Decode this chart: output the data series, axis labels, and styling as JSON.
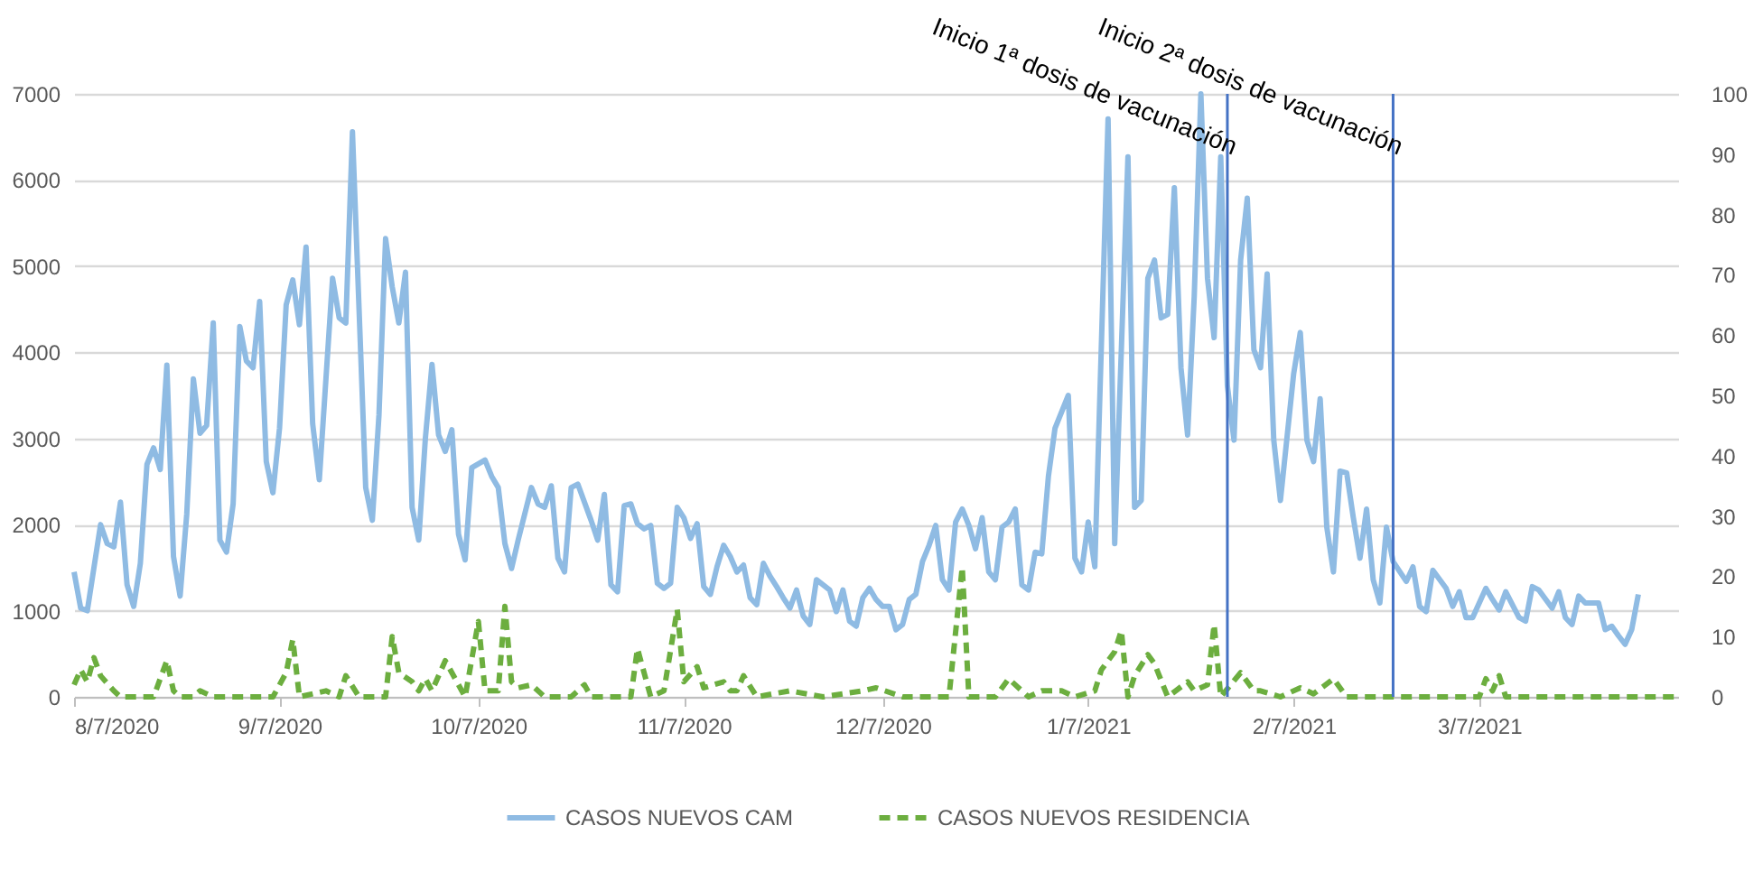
{
  "chart_data": {
    "type": "line",
    "xlim": [
      "2020-08-07",
      "2021-04-06"
    ],
    "xticks": [
      {
        "value": "2020-08-07",
        "label": "8/7/2020"
      },
      {
        "value": "2020-09-07",
        "label": "9/7/2020"
      },
      {
        "value": "2020-10-07",
        "label": "10/7/2020"
      },
      {
        "value": "2020-11-07",
        "label": "11/7/2020"
      },
      {
        "value": "2020-12-07",
        "label": "12/7/2020"
      },
      {
        "value": "2021-01-07",
        "label": "1/7/2021"
      },
      {
        "value": "2021-02-07",
        "label": "2/7/2021"
      },
      {
        "value": "2021-03-07",
        "label": "3/7/2021"
      }
    ],
    "ylim": [
      0,
      7000
    ],
    "yticks": [
      0,
      1000,
      2000,
      3000,
      4000,
      5000,
      6000,
      7000
    ],
    "y2lim": [
      0,
      100
    ],
    "y2ticks": [
      0,
      10,
      20,
      30,
      40,
      50,
      60,
      70,
      80,
      90,
      100
    ],
    "grid": "y",
    "legend": "bottom",
    "series": [
      {
        "name": "CASOS NUEVOS CAM",
        "type": "line",
        "color": "#8fbbe3",
        "line_style": "solid",
        "x": [
          "2020-08-07",
          "2020-08-08",
          "2020-08-09",
          "2020-08-10",
          "2020-08-11",
          "2020-08-12",
          "2020-08-13",
          "2020-08-14",
          "2020-08-15",
          "2020-08-16",
          "2020-08-17",
          "2020-08-18",
          "2020-08-19",
          "2020-08-20",
          "2020-08-21",
          "2020-08-22",
          "2020-08-23",
          "2020-08-24",
          "2020-08-25",
          "2020-08-26",
          "2020-08-27",
          "2020-08-28",
          "2020-08-29",
          "2020-08-30",
          "2020-08-31",
          "2020-09-01",
          "2020-09-02",
          "2020-09-03",
          "2020-09-04",
          "2020-09-05",
          "2020-09-06",
          "2020-09-07",
          "2020-09-08",
          "2020-09-09",
          "2020-09-10",
          "2020-09-11",
          "2020-09-12",
          "2020-09-13",
          "2020-09-14",
          "2020-09-15",
          "2020-09-16",
          "2020-09-17",
          "2020-09-18",
          "2020-09-20",
          "2020-09-21",
          "2020-09-22",
          "2020-09-23",
          "2020-09-24",
          "2020-09-25",
          "2020-09-26",
          "2020-09-27",
          "2020-09-28",
          "2020-09-29",
          "2020-09-30",
          "2020-10-01",
          "2020-10-02",
          "2020-10-03",
          "2020-10-04",
          "2020-10-05",
          "2020-10-06",
          "2020-10-08",
          "2020-10-09",
          "2020-10-10",
          "2020-10-11",
          "2020-10-12",
          "2020-10-13",
          "2020-10-15",
          "2020-10-16",
          "2020-10-17",
          "2020-10-18",
          "2020-10-19",
          "2020-10-20",
          "2020-10-21",
          "2020-10-22",
          "2020-10-24",
          "2020-10-25",
          "2020-10-26",
          "2020-10-27",
          "2020-10-28",
          "2020-10-29",
          "2020-10-30",
          "2020-10-31",
          "2020-11-01",
          "2020-11-02",
          "2020-11-03",
          "2020-11-04",
          "2020-11-05",
          "2020-11-06",
          "2020-11-07",
          "2020-11-08",
          "2020-11-09",
          "2020-11-10",
          "2020-11-11",
          "2020-11-12",
          "2020-11-13",
          "2020-11-14",
          "2020-11-15",
          "2020-11-16",
          "2020-11-17",
          "2020-11-18",
          "2020-11-19",
          "2020-11-20",
          "2020-11-21",
          "2020-11-22",
          "2020-11-23",
          "2020-11-24",
          "2020-11-25",
          "2020-11-26",
          "2020-11-27",
          "2020-11-29",
          "2020-11-30",
          "2020-12-01",
          "2020-12-02",
          "2020-12-03",
          "2020-12-04",
          "2020-12-05",
          "2020-12-06",
          "2020-12-07",
          "2020-12-08",
          "2020-12-09",
          "2020-12-10",
          "2020-12-11",
          "2020-12-12",
          "2020-12-13",
          "2020-12-14",
          "2020-12-15",
          "2020-12-16",
          "2020-12-17",
          "2020-12-18",
          "2020-12-19",
          "2020-12-20",
          "2020-12-21",
          "2020-12-22",
          "2020-12-23",
          "2020-12-24",
          "2020-12-25",
          "2020-12-26",
          "2020-12-27",
          "2020-12-28",
          "2020-12-29",
          "2020-12-30",
          "2020-12-31",
          "2021-01-01",
          "2021-01-02",
          "2021-01-04",
          "2021-01-05",
          "2021-01-06",
          "2021-01-07",
          "2021-01-08",
          "2021-01-10",
          "2021-01-11",
          "2021-01-13",
          "2021-01-14",
          "2021-01-15",
          "2021-01-16",
          "2021-01-17",
          "2021-01-18",
          "2021-01-19",
          "2021-01-20",
          "2021-01-21",
          "2021-01-22",
          "2021-01-23",
          "2021-01-24",
          "2021-01-25",
          "2021-01-26",
          "2021-01-27",
          "2021-01-28",
          "2021-01-29",
          "2021-01-30",
          "2021-01-31",
          "2021-02-01",
          "2021-02-02",
          "2021-02-03",
          "2021-02-04",
          "2021-02-05",
          "2021-02-07",
          "2021-02-08",
          "2021-02-09",
          "2021-02-10",
          "2021-02-11",
          "2021-02-12",
          "2021-02-13",
          "2021-02-14",
          "2021-02-15",
          "2021-02-16",
          "2021-02-17",
          "2021-02-18",
          "2021-02-19",
          "2021-02-20",
          "2021-02-21",
          "2021-02-22",
          "2021-02-24",
          "2021-02-25",
          "2021-02-26",
          "2021-02-27",
          "2021-02-28",
          "2021-03-02",
          "2021-03-03",
          "2021-03-04",
          "2021-03-05",
          "2021-03-06",
          "2021-03-08",
          "2021-03-09",
          "2021-03-10",
          "2021-03-11",
          "2021-03-13",
          "2021-03-14",
          "2021-03-15",
          "2021-03-16",
          "2021-03-18",
          "2021-03-19",
          "2021-03-20",
          "2021-03-21",
          "2021-03-22",
          "2021-03-23",
          "2021-03-25",
          "2021-03-26",
          "2021-03-27",
          "2021-03-28",
          "2021-03-29",
          "2021-03-30",
          "2021-03-31"
        ],
        "values": [
          1450,
          1030,
          1000,
          1500,
          2000,
          1780,
          1740,
          2260,
          1300,
          1050,
          1550,
          2700,
          2890,
          2640,
          3850,
          1630,
          1170,
          2120,
          3690,
          3060,
          3150,
          4340,
          1820,
          1680,
          2240,
          4300,
          3900,
          3820,
          4590,
          2730,
          2370,
          3120,
          4550,
          4840,
          4320,
          5220,
          3170,
          2520,
          3690,
          4860,
          4400,
          4340,
          6560,
          2430,
          2050,
          3270,
          5320,
          4760,
          4340,
          4930,
          2200,
          1820,
          3000,
          3860,
          3040,
          2850,
          3100,
          1890,
          1590,
          2660,
          2750,
          2560,
          2430,
          1780,
          1490,
          1820,
          2430,
          2240,
          2200,
          2450,
          1610,
          1450,
          2430,
          2470,
          2050,
          1820,
          2350,
          1300,
          1220,
          2220,
          2240,
          2010,
          1950,
          1990,
          1320,
          1260,
          1320,
          2200,
          2080,
          1840,
          2010,
          1280,
          1190,
          1510,
          1760,
          1630,
          1450,
          1530,
          1150,
          1070,
          1550,
          1400,
          1280,
          1150,
          1030,
          1240,
          940,
          840,
          1360,
          1240,
          990,
          1240,
          880,
          820,
          1150,
          1260,
          1130,
          1050,
          1050,
          780,
          840,
          1130,
          1190,
          1570,
          1760,
          1990,
          1360,
          1240,
          2030,
          2180,
          1990,
          1720,
          2080,
          1450,
          1360,
          1970,
          2030,
          2180,
          1300,
          1240,
          1680,
          1660,
          2560,
          3120,
          3500,
          1610,
          1450,
          2030,
          1510,
          6710,
          1780,
          6270,
          2200,
          2280,
          4860,
          5070,
          4400,
          4440,
          5910,
          3820,
          3040,
          4650,
          7000,
          4860,
          4170,
          6270,
          3610,
          2980,
          5070,
          5790,
          4030,
          3820,
          4910,
          2980,
          2280,
          3750,
          4230,
          2980,
          2730,
          3460,
          1970,
          1450,
          2620,
          2600,
          2080,
          1610,
          2180,
          1360,
          1090,
          1970,
          1570,
          1340,
          1510,
          1050,
          990,
          1470,
          1260,
          1050,
          1220,
          920,
          920,
          1260,
          1130,
          1010,
          1220,
          920,
          880,
          1280,
          1240,
          1030,
          1220,
          920,
          840,
          1170,
          1090,
          1090,
          780,
          820,
          710,
          610,
          780,
          1190
        ]
      },
      {
        "name": "CASOS NUEVOS RESIDENCIA",
        "type": "line",
        "axis": "y2",
        "color": "#6cae3f",
        "line_style": "dashed",
        "x": [
          "2020-08-07",
          "2020-08-08",
          "2020-08-09",
          "2020-08-10",
          "2020-08-11",
          "2020-08-13",
          "2020-08-14",
          "2020-08-19",
          "2020-08-21",
          "2020-08-22",
          "2020-08-23",
          "2020-08-25",
          "2020-08-26",
          "2020-08-28",
          "2020-09-06",
          "2020-09-08",
          "2020-09-09",
          "2020-09-10",
          "2020-09-14",
          "2020-09-16",
          "2020-09-17",
          "2020-09-19",
          "2020-09-23",
          "2020-09-24",
          "2020-09-25",
          "2020-09-27",
          "2020-09-28",
          "2020-09-29",
          "2020-09-30",
          "2020-10-02",
          "2020-10-05",
          "2020-10-07",
          "2020-10-08",
          "2020-10-10",
          "2020-10-11",
          "2020-10-12",
          "2020-10-13",
          "2020-10-15",
          "2020-10-17",
          "2020-10-21",
          "2020-10-23",
          "2020-10-24",
          "2020-10-30",
          "2020-10-31",
          "2020-11-02",
          "2020-11-04",
          "2020-11-06",
          "2020-11-07",
          "2020-11-09",
          "2020-11-10",
          "2020-11-13",
          "2020-11-14",
          "2020-11-15",
          "2020-11-16",
          "2020-11-18",
          "2020-11-23",
          "2020-11-28",
          "2020-12-04",
          "2020-12-06",
          "2020-12-10",
          "2020-12-17",
          "2020-12-19",
          "2020-12-20",
          "2020-12-24",
          "2020-12-26",
          "2020-12-29",
          "2020-12-31",
          "2021-01-03",
          "2021-01-05",
          "2021-01-08",
          "2021-01-09",
          "2021-01-11",
          "2021-01-12",
          "2021-01-13",
          "2021-01-14",
          "2021-01-16",
          "2021-01-17",
          "2021-01-19",
          "2021-01-22",
          "2021-01-23",
          "2021-01-25",
          "2021-01-26",
          "2021-01-27",
          "2021-01-30",
          "2021-02-01",
          "2021-02-02",
          "2021-02-05",
          "2021-02-08",
          "2021-02-10",
          "2021-02-13",
          "2021-02-15",
          "2021-03-07",
          "2021-03-08",
          "2021-03-09",
          "2021-03-10",
          "2021-03-11",
          "2021-04-06"
        ],
        "values": [
          2,
          4.5,
          2.5,
          6.5,
          3.5,
          1,
          0,
          0,
          6,
          1,
          0,
          0,
          1,
          0,
          0,
          4,
          9.5,
          0,
          1,
          0,
          3.5,
          0,
          0,
          10,
          4,
          2.5,
          1,
          3,
          1,
          6,
          0,
          12.5,
          1,
          1,
          15,
          2.5,
          1.5,
          2,
          0,
          0,
          2,
          0,
          0,
          8,
          0,
          1,
          14.5,
          2.5,
          5,
          1.5,
          2.5,
          1,
          1,
          3.5,
          0,
          1,
          0,
          1,
          1.5,
          0,
          0,
          21.5,
          0,
          0,
          3,
          0,
          1,
          1,
          0,
          1,
          4.5,
          7.5,
          11,
          0,
          3.5,
          7,
          5.5,
          0,
          2.5,
          1,
          2,
          12,
          0,
          4,
          1,
          1,
          0,
          1.5,
          0.5,
          3,
          0,
          0,
          3,
          1,
          3.5,
          0,
          0
        ]
      }
    ],
    "ref_lines": [
      {
        "axis": "x",
        "value": "2021-01-28",
        "label": "Inicio 1ª dosis de vacunación",
        "color": "#4472c4"
      },
      {
        "axis": "x",
        "value": "2021-02-22",
        "label": "Inicio 2ª dosis de vacunación",
        "color": "#4472c4"
      }
    ]
  }
}
